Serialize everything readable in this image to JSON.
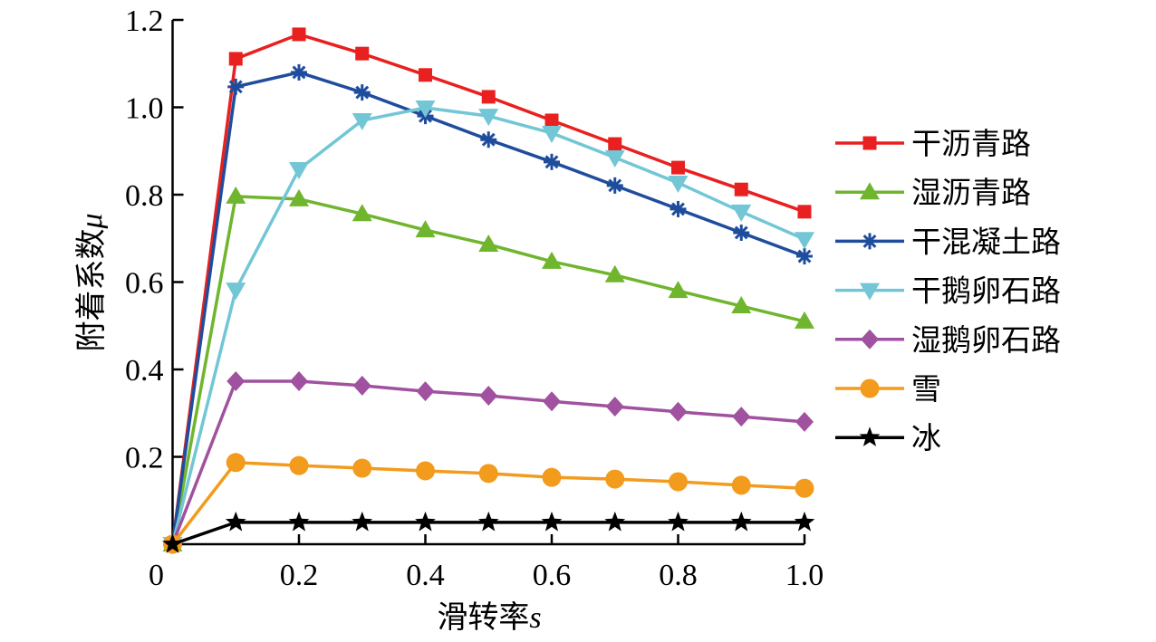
{
  "chart_data": {
    "type": "line",
    "title": "",
    "xlabel": "滑转率s",
    "ylabel": "附着系数μ",
    "xlabel_main": "滑转率",
    "xlabel_var": "s",
    "ylabel_main": "附着系数",
    "ylabel_var": "μ",
    "xlim": [
      0,
      1.0
    ],
    "ylim": [
      0,
      1.2
    ],
    "xticks": [
      0,
      0.2,
      0.4,
      0.6,
      0.8,
      1.0
    ],
    "xtick_labels": [
      "0",
      "0.2",
      "0.4",
      "0.6",
      "0.8",
      "1.0"
    ],
    "yticks": [
      0.2,
      0.4,
      0.6,
      0.8,
      1.0,
      1.2
    ],
    "ytick_labels": [
      "0.2",
      "0.4",
      "0.6",
      "0.8",
      "1.0",
      "1.2"
    ],
    "grid": false,
    "legend_position": "right",
    "x": [
      0,
      0.1,
      0.2,
      0.3,
      0.4,
      0.5,
      0.6,
      0.7,
      0.8,
      0.9,
      1.0
    ],
    "series": [
      {
        "name": "干沥青路",
        "color": "#e8201f",
        "marker": "square",
        "values": [
          0,
          1.111,
          1.167,
          1.123,
          1.074,
          1.024,
          0.97,
          0.916,
          0.862,
          0.812,
          0.761
        ]
      },
      {
        "name": "湿沥青路",
        "color": "#70b52e",
        "marker": "triangle-up",
        "values": [
          0,
          0.796,
          0.79,
          0.756,
          0.719,
          0.686,
          0.647,
          0.616,
          0.58,
          0.545,
          0.51
        ]
      },
      {
        "name": "干混凝土路",
        "color": "#1f4d9d",
        "marker": "asterisk",
        "values": [
          0,
          1.047,
          1.08,
          1.034,
          0.98,
          0.926,
          0.875,
          0.821,
          0.767,
          0.713,
          0.659
        ]
      },
      {
        "name": "干鹅卵石路",
        "color": "#72c6d6",
        "marker": "triangle-down",
        "values": [
          0,
          0.582,
          0.858,
          0.97,
          0.999,
          0.98,
          0.941,
          0.885,
          0.827,
          0.761,
          0.698
        ]
      },
      {
        "name": "湿鹅卵石路",
        "color": "#a0519f",
        "marker": "diamond",
        "values": [
          0,
          0.373,
          0.373,
          0.363,
          0.35,
          0.34,
          0.327,
          0.315,
          0.303,
          0.292,
          0.28
        ]
      },
      {
        "name": "雪",
        "color": "#f29b1c",
        "marker": "circle",
        "values": [
          0,
          0.187,
          0.18,
          0.174,
          0.168,
          0.162,
          0.153,
          0.149,
          0.143,
          0.135,
          0.128
        ]
      },
      {
        "name": "冰",
        "color": "#000000",
        "marker": "star",
        "values": [
          0,
          0.05,
          0.05,
          0.05,
          0.05,
          0.05,
          0.05,
          0.05,
          0.05,
          0.05,
          0.05
        ]
      }
    ]
  }
}
